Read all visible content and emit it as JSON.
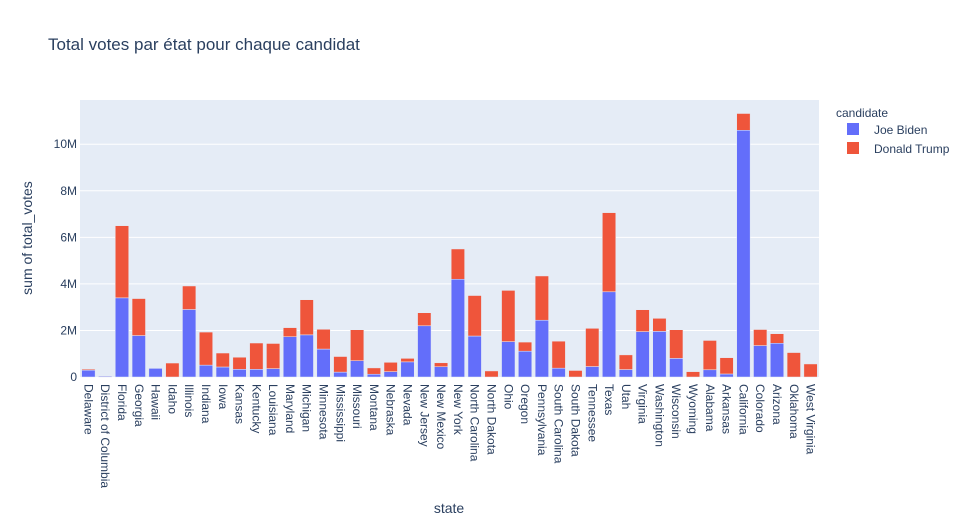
{
  "chart_data": {
    "type": "bar",
    "barmode": "stack",
    "title": "Total votes par état pour chaque candidat",
    "xlabel": "state",
    "ylabel": "sum of total_votes",
    "ylim": [
      0,
      11900000
    ],
    "yticks": [
      0,
      2000000,
      4000000,
      6000000,
      8000000,
      10000000
    ],
    "ytick_labels": [
      "0",
      "2M",
      "4M",
      "6M",
      "8M",
      "10M"
    ],
    "grid": true,
    "legend_title": "candidate",
    "legend_position": "top-right",
    "categories": [
      "Delaware",
      "District of Columbia",
      "Florida",
      "Georgia",
      "Hawaii",
      "Idaho",
      "Illinois",
      "Indiana",
      "Iowa",
      "Kansas",
      "Kentucky",
      "Louisiana",
      "Maryland",
      "Michigan",
      "Minnesota",
      "Mississippi",
      "Missouri",
      "Montana",
      "Nebraska",
      "Nevada",
      "New Jersey",
      "New Mexico",
      "New York",
      "North Carolina",
      "North Dakota",
      "Ohio",
      "Oregon",
      "Pennsylvania",
      "South Carolina",
      "South Dakota",
      "Tennessee",
      "Texas",
      "Utah",
      "Virginia",
      "Washington",
      "Wisconsin",
      "Wyoming",
      "Alabama",
      "Arkansas",
      "California",
      "Colorado",
      "Arizona",
      "Oklahoma",
      "West Virginia"
    ],
    "series": [
      {
        "name": "Joe Biden",
        "color": "#636efa",
        "values": [
          296000,
          40000,
          3400000,
          1780000,
          370000,
          0,
          2900000,
          510000,
          430000,
          330000,
          330000,
          360000,
          1730000,
          1810000,
          1200000,
          210000,
          700000,
          120000,
          230000,
          650000,
          2200000,
          440000,
          4200000,
          1760000,
          0,
          1520000,
          1110000,
          2440000,
          380000,
          0,
          450000,
          3660000,
          320000,
          1950000,
          1960000,
          800000,
          0,
          310000,
          130000,
          10600000,
          1350000,
          1450000,
          0,
          0
        ]
      },
      {
        "name": "Donald Trump",
        "color": "#ef553b",
        "values": [
          44000,
          20000,
          3100000,
          1590000,
          0,
          600000,
          1010000,
          1420000,
          600000,
          520000,
          1130000,
          1080000,
          390000,
          1510000,
          850000,
          670000,
          1330000,
          270000,
          400000,
          150000,
          560000,
          170000,
          1300000,
          1740000,
          260000,
          2200000,
          390000,
          1900000,
          1160000,
          280000,
          1640000,
          3400000,
          630000,
          940000,
          560000,
          1230000,
          230000,
          1260000,
          700000,
          720000,
          690000,
          410000,
          1050000,
          560000
        ]
      }
    ]
  }
}
